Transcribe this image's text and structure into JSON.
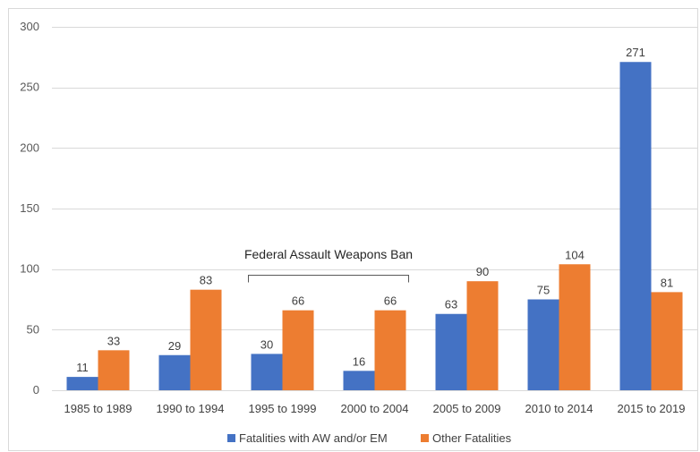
{
  "chart_data": {
    "type": "bar",
    "title": "",
    "xlabel": "",
    "ylabel": "",
    "ylim": [
      0,
      300
    ],
    "yticks": [
      0,
      50,
      100,
      150,
      200,
      250,
      300
    ],
    "grid": true,
    "legend_position": "bottom",
    "categories": [
      "1985 to 1989",
      "1990 to 1994",
      "1995 to 1999",
      "2000 to 2004",
      "2005 to 2009",
      "2010 to 2014",
      "2015 to 2019"
    ],
    "series": [
      {
        "name": "Fatalities with AW and/or EM",
        "color": "#4472C4",
        "values": [
          11,
          29,
          30,
          16,
          63,
          75,
          271
        ]
      },
      {
        "name": "Other Fatalities",
        "color": "#ED7D31",
        "values": [
          33,
          83,
          66,
          66,
          90,
          104,
          81
        ]
      }
    ],
    "annotation": {
      "text": "Federal Assault Weapons Ban",
      "from_category": "1995 to 1999",
      "to_category": "2000 to 2004"
    }
  }
}
